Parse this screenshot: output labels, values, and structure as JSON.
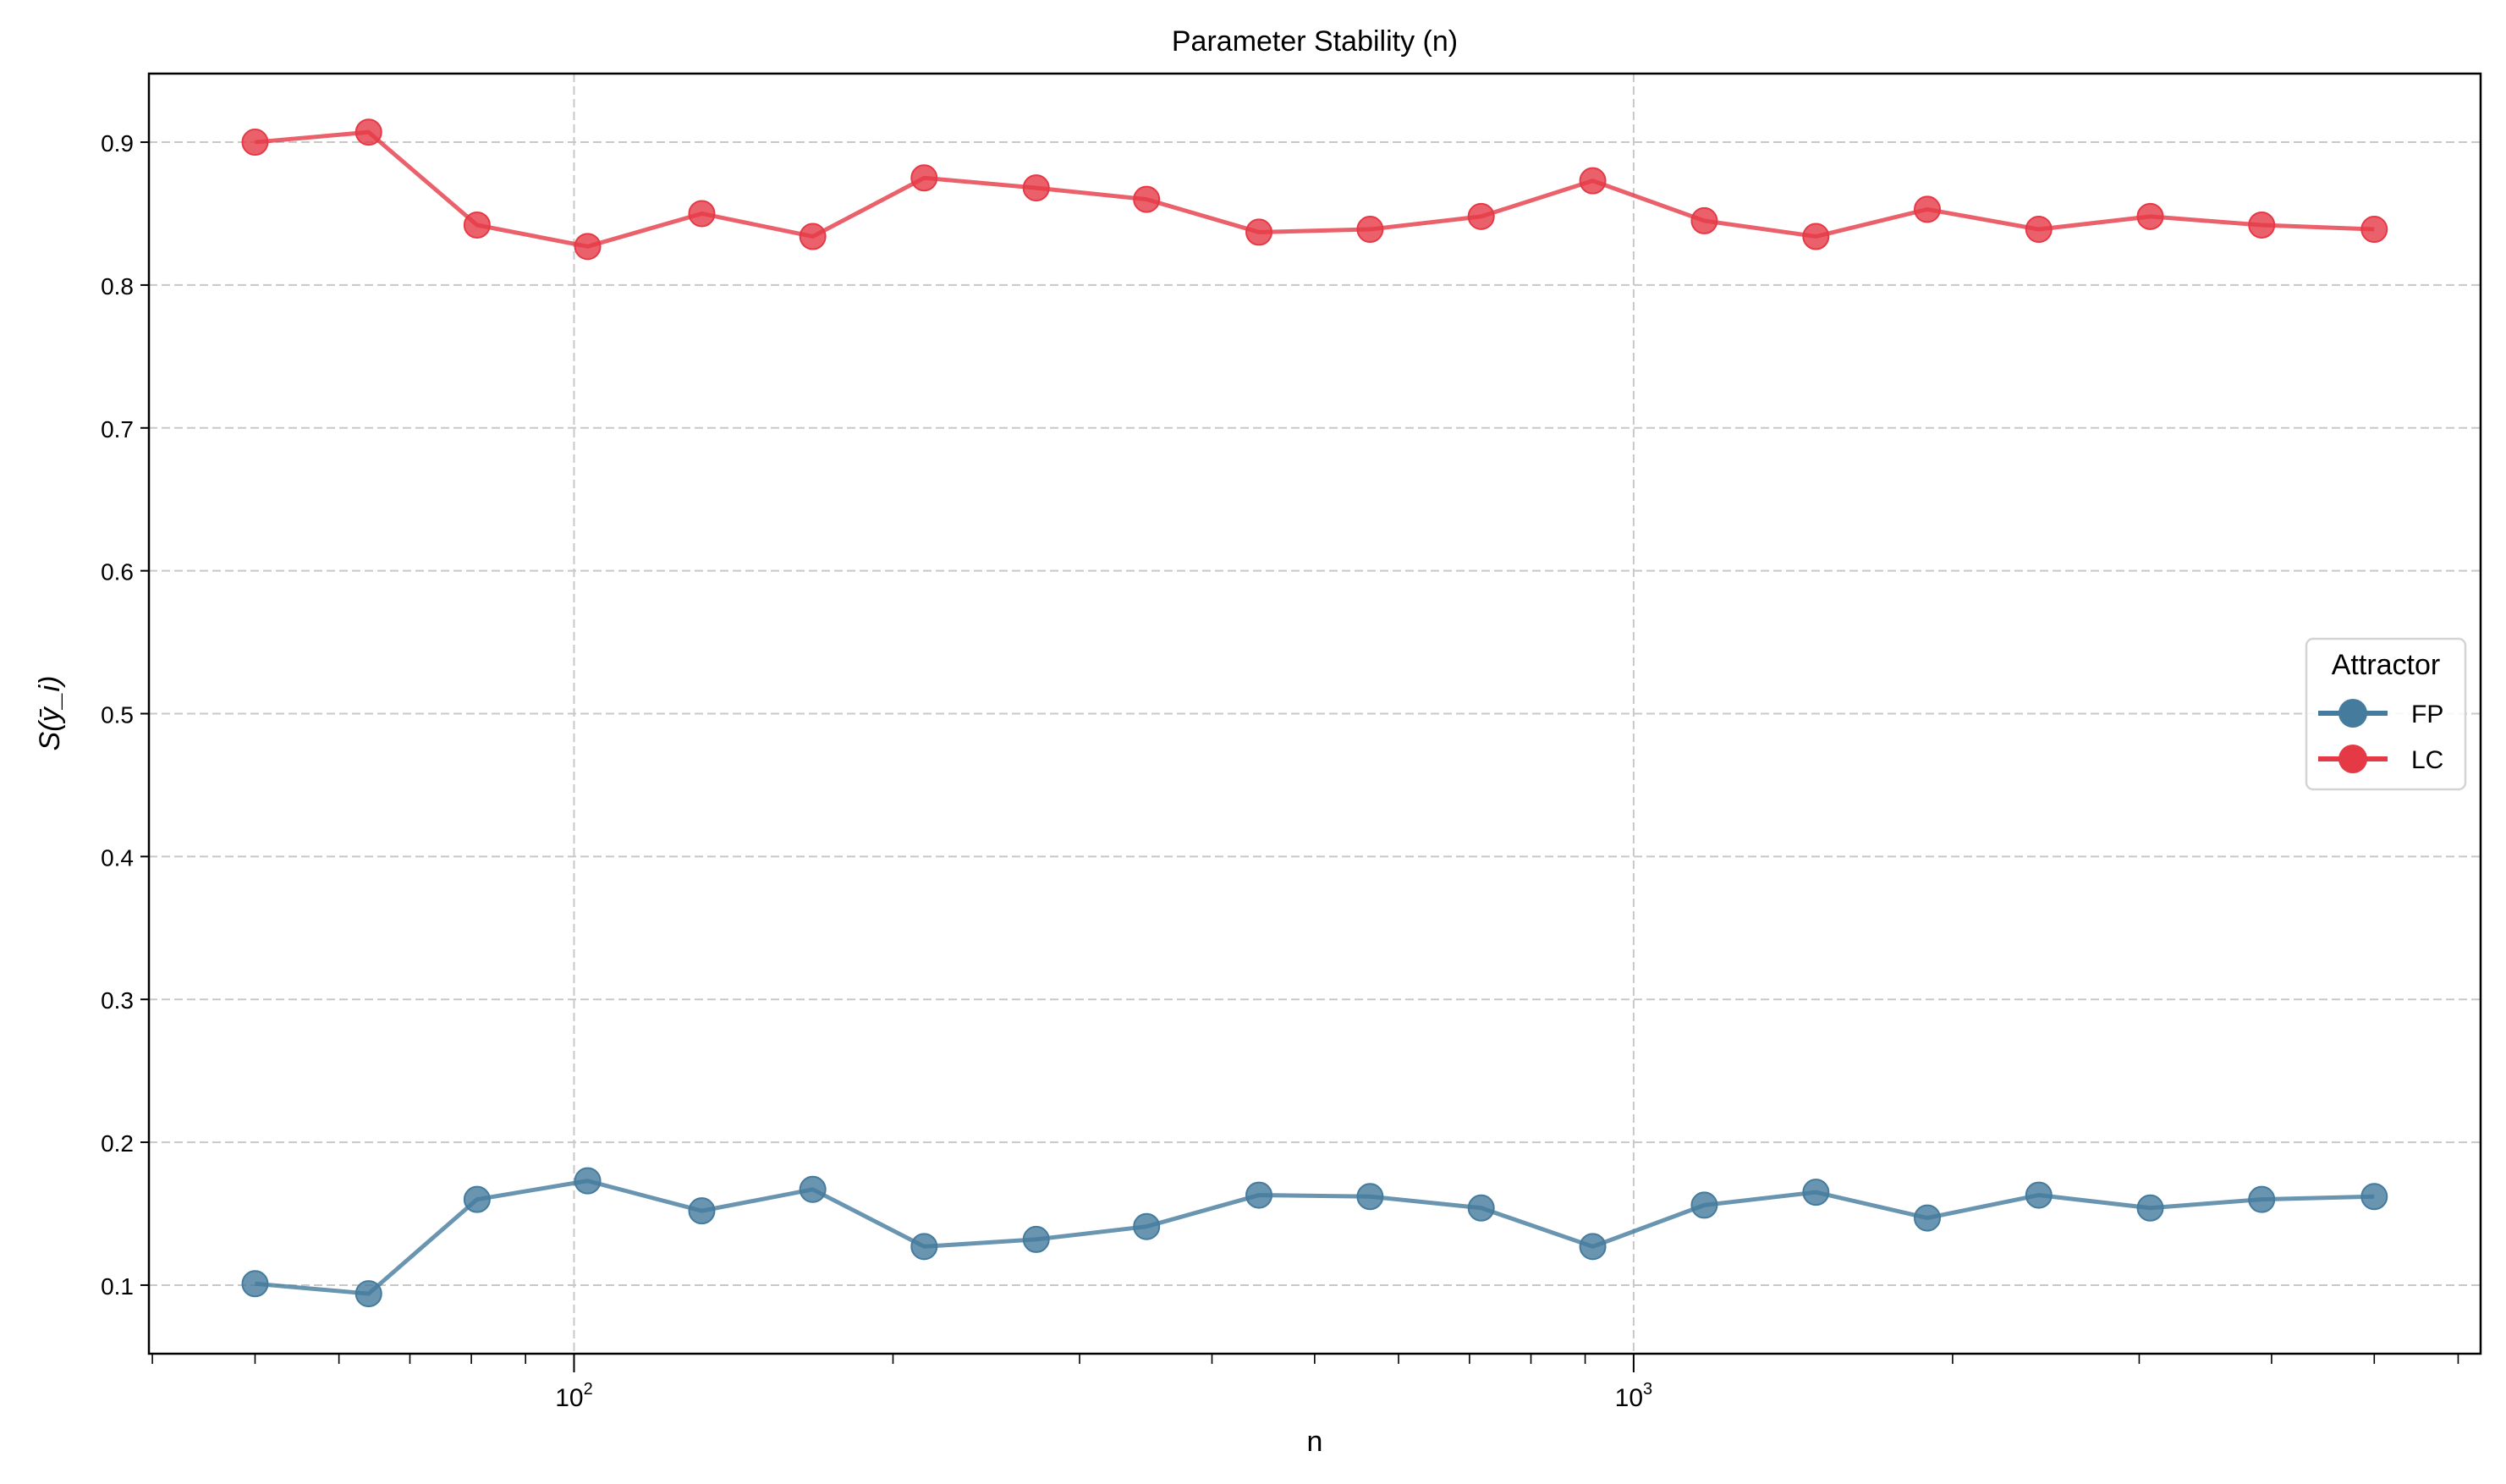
{
  "chart_data": {
    "type": "line",
    "title": "Parameter Stability (n)",
    "xlabel": "n",
    "ylabel": "S(ȳ_i)",
    "xscale": "log",
    "xlim": [
      39.7,
      6300
    ],
    "ylim": [
      0.052,
      0.948
    ],
    "x_tick_labels": [
      {
        "value": 100,
        "base": "10",
        "exp": "2"
      },
      {
        "value": 1000,
        "base": "10",
        "exp": "3"
      }
    ],
    "y_ticks": [
      0.1,
      0.2,
      0.3,
      0.4,
      0.5,
      0.6,
      0.7,
      0.8,
      0.9
    ],
    "y_tick_labels": [
      "0.1",
      "0.2",
      "0.3",
      "0.4",
      "0.5",
      "0.6",
      "0.7",
      "0.8",
      "0.9"
    ],
    "grid": true,
    "legend": {
      "title": "Attractor",
      "placement": "center-right"
    },
    "x": [
      50,
      64,
      81,
      103,
      132,
      168,
      214,
      273,
      347,
      443,
      564,
      718,
      915,
      1166,
      1486,
      1893,
      2412,
      3073,
      3915,
      5000
    ],
    "series": [
      {
        "name": "FP",
        "color": "#457b9d",
        "values": [
          0.101,
          0.094,
          0.16,
          0.173,
          0.152,
          0.167,
          0.127,
          0.132,
          0.141,
          0.163,
          0.162,
          0.154,
          0.127,
          0.156,
          0.165,
          0.147,
          0.163,
          0.154,
          0.16,
          0.162
        ]
      },
      {
        "name": "LC",
        "color": "#e63946",
        "values": [
          0.9,
          0.907,
          0.842,
          0.827,
          0.85,
          0.834,
          0.875,
          0.868,
          0.86,
          0.837,
          0.839,
          0.848,
          0.873,
          0.845,
          0.834,
          0.853,
          0.839,
          0.848,
          0.842,
          0.839
        ]
      }
    ]
  }
}
